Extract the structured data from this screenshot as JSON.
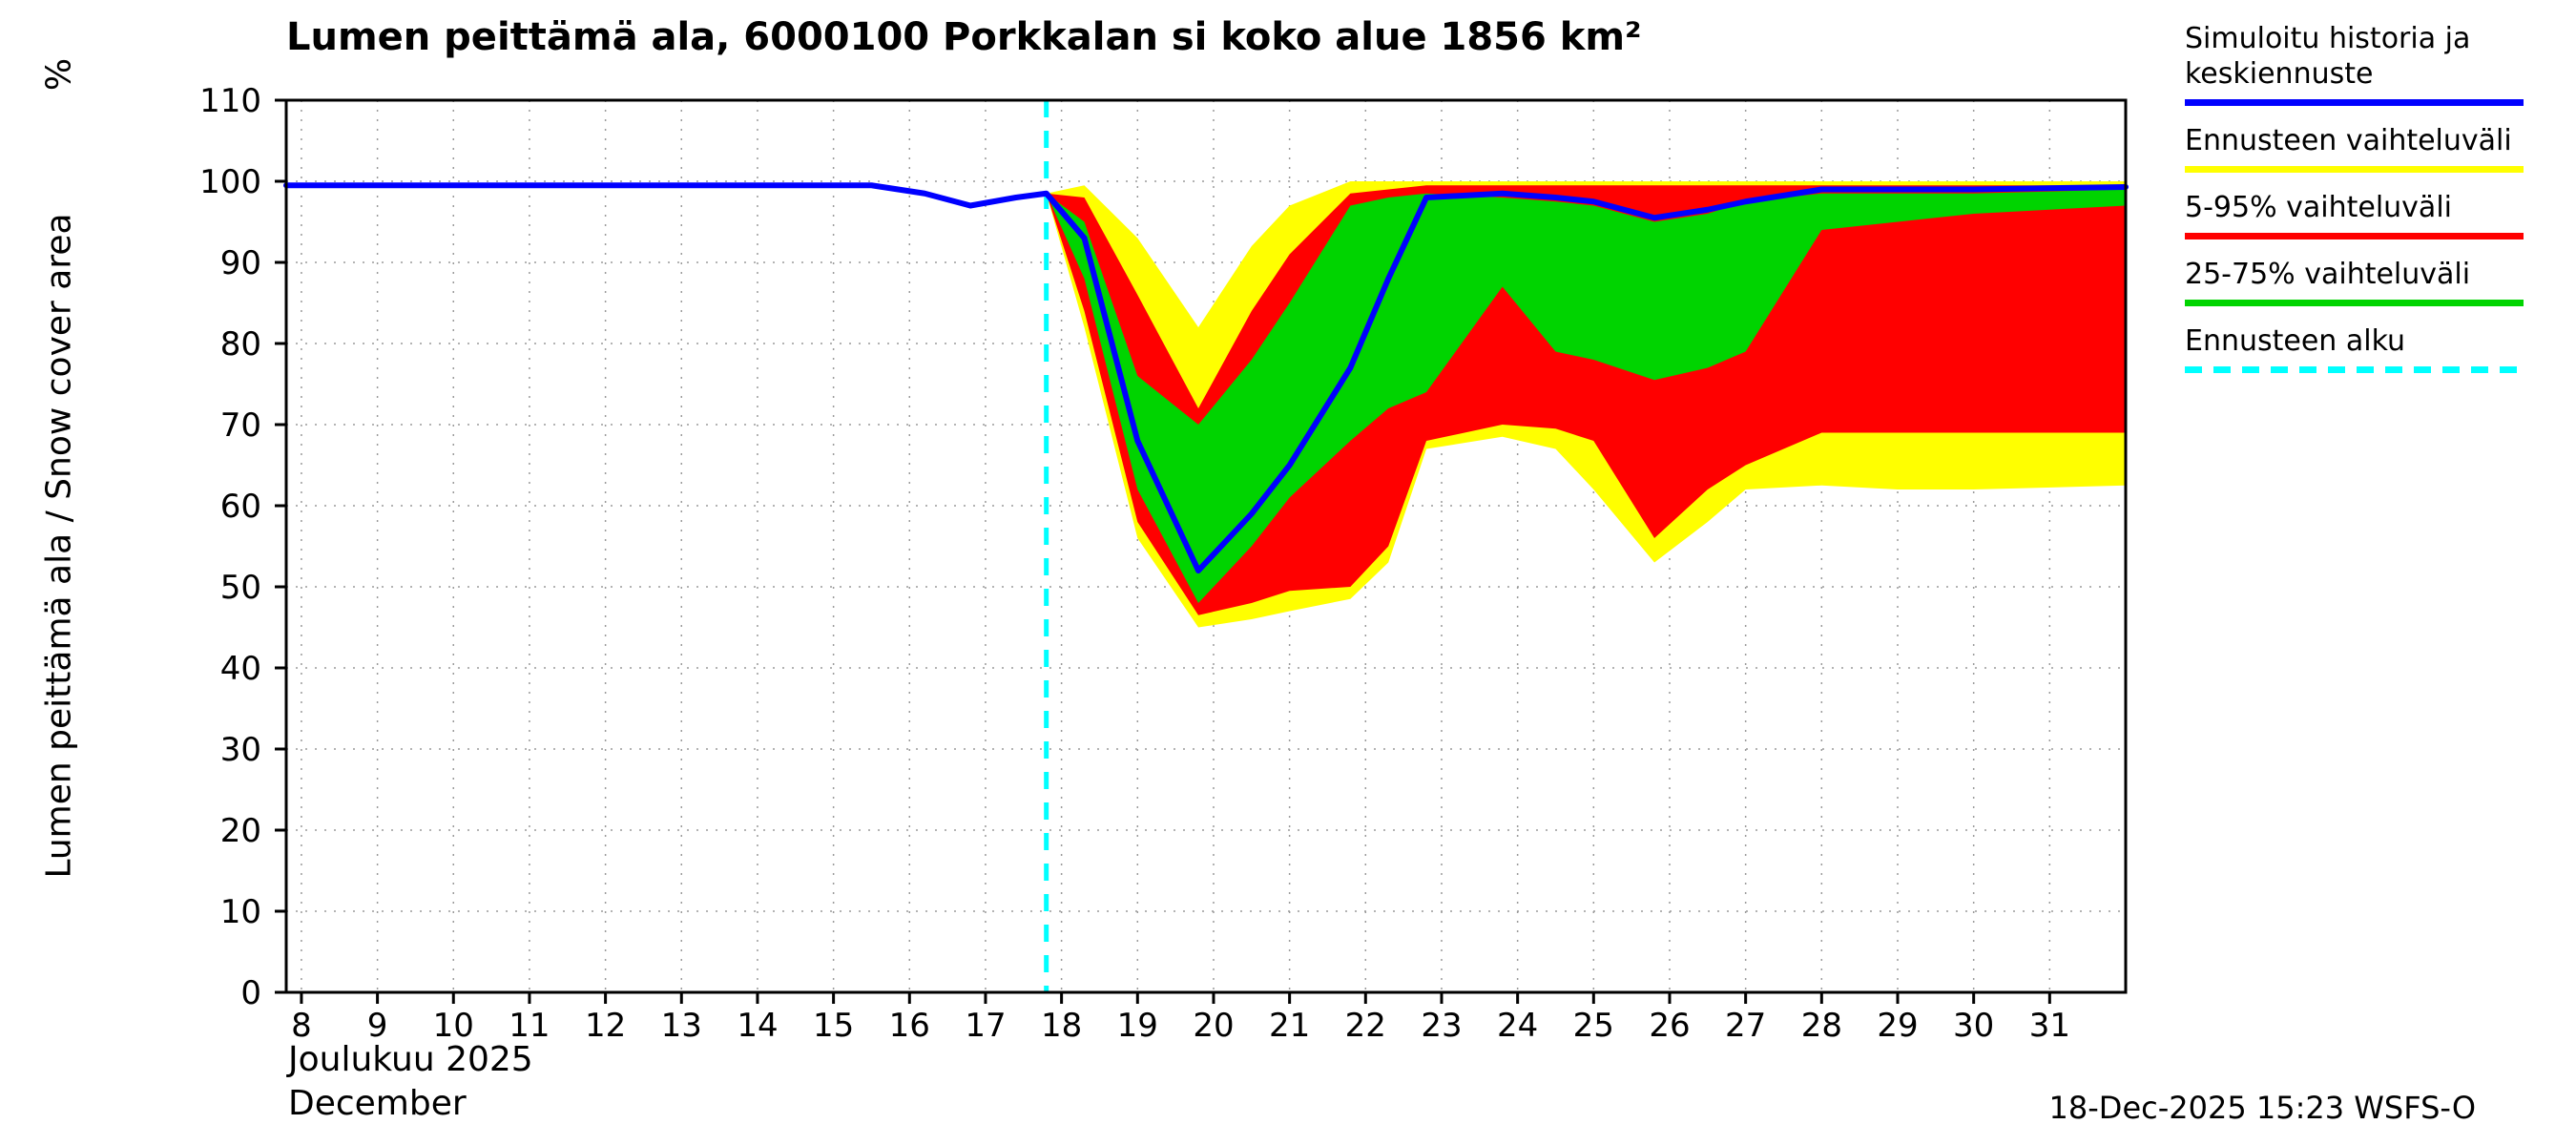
{
  "header": {
    "title": "Lumen peittämä ala, 6000100 Porkkalan si koko alue 1856 km²"
  },
  "y_axis": {
    "label": "Lumen peittämä ala / Snow cover area",
    "unit": "%"
  },
  "x_axis": {
    "month_fi": "Joulukuu 2025",
    "month_en": "December"
  },
  "footer": {
    "timestamp": "18-Dec-2025 15:23 WSFS-O"
  },
  "legend": {
    "items": [
      {
        "label": "Simuloitu historia ja keskiennuste",
        "color": "#0000ff",
        "dashed": false
      },
      {
        "label": "Ennusteen vaihteluväli",
        "color": "#ffff00",
        "dashed": false
      },
      {
        "label": "5-95% vaihteluväli",
        "color": "#ff0000",
        "dashed": false
      },
      {
        "label": "25-75% vaihteluväli",
        "color": "#00d400",
        "dashed": false
      },
      {
        "label": "Ennusteen alku",
        "color": "#00ffff",
        "dashed": true
      }
    ]
  },
  "chart_data": {
    "type": "area",
    "title": "Lumen peittämä ala, 6000100 Porkkalan si koko alue 1856 km²",
    "xlabel": "Joulukuu 2025 / December",
    "ylabel": "Lumen peittämä ala / Snow cover area %",
    "xlim": [
      7.8,
      32.0
    ],
    "ylim": [
      0,
      110
    ],
    "x_ticks": [
      8,
      9,
      10,
      11,
      12,
      13,
      14,
      15,
      16,
      17,
      18,
      19,
      20,
      21,
      22,
      23,
      24,
      25,
      26,
      27,
      28,
      29,
      30,
      31
    ],
    "y_ticks": [
      0,
      10,
      20,
      30,
      40,
      50,
      60,
      70,
      80,
      90,
      100,
      110
    ],
    "grid": true,
    "legend_position": "outside-right",
    "forecast_start_x": 17.8,
    "forecast_line_color": "#00ffff",
    "history": {
      "name": "Simuloitu historia",
      "color": "#0000ff",
      "x": [
        7.8,
        15.5,
        16.2,
        16.8,
        17.4,
        17.8
      ],
      "y": [
        99.5,
        99.5,
        98.5,
        97,
        98,
        98.5
      ]
    },
    "forecast_x": [
      17.8,
      18.3,
      19,
      19.8,
      20.5,
      21,
      21.8,
      22.3,
      22.8,
      23.8,
      24.5,
      25,
      25.8,
      26.5,
      27,
      28,
      29,
      30,
      32
    ],
    "median": {
      "name": "Keskiennuste",
      "color": "#0000ff",
      "y": [
        98.5,
        93,
        68,
        52,
        59,
        65,
        77,
        88,
        98,
        98.5,
        98,
        97.5,
        95.5,
        96.5,
        97.5,
        99,
        99,
        99,
        99.3
      ]
    },
    "bands": {
      "yellow": {
        "name": "Ennusteen vaihteluväli",
        "color": "#ffff00",
        "upper": [
          98.5,
          99.5,
          93,
          82,
          92,
          97,
          100,
          100,
          100,
          100,
          100,
          100,
          100,
          100,
          100,
          100,
          100,
          100,
          100
        ],
        "lower": [
          98.5,
          82,
          56,
          45,
          46,
          47,
          48.5,
          53,
          67,
          68.5,
          67,
          62,
          53,
          58,
          62,
          62.5,
          62,
          62,
          62.5
        ]
      },
      "red": {
        "name": "5-95% vaihteluväli",
        "color": "#ff0000",
        "upper": [
          98.5,
          98,
          86,
          72,
          84,
          91,
          98.5,
          99,
          99.5,
          99.5,
          99.5,
          99.5,
          99.5,
          99.5,
          99.5,
          99.5,
          99.5,
          99.5,
          99.5
        ],
        "lower": [
          98.5,
          84,
          58,
          46.5,
          48,
          49.5,
          50,
          55,
          68,
          70,
          69.5,
          68,
          56,
          62,
          65,
          69,
          69,
          69,
          69
        ]
      },
      "green": {
        "name": "25-75% vaihteluväli",
        "color": "#00d400",
        "upper": [
          98.5,
          95,
          76,
          70,
          78,
          85,
          97,
          98,
          98.5,
          98,
          97.5,
          97,
          95,
          96,
          97.5,
          98.5,
          98.5,
          98.5,
          99
        ],
        "lower": [
          98.5,
          88,
          62,
          48,
          55,
          61,
          68,
          72,
          74,
          87,
          79,
          78,
          75.5,
          77,
          79,
          94,
          95,
          96,
          97
        ]
      }
    }
  }
}
